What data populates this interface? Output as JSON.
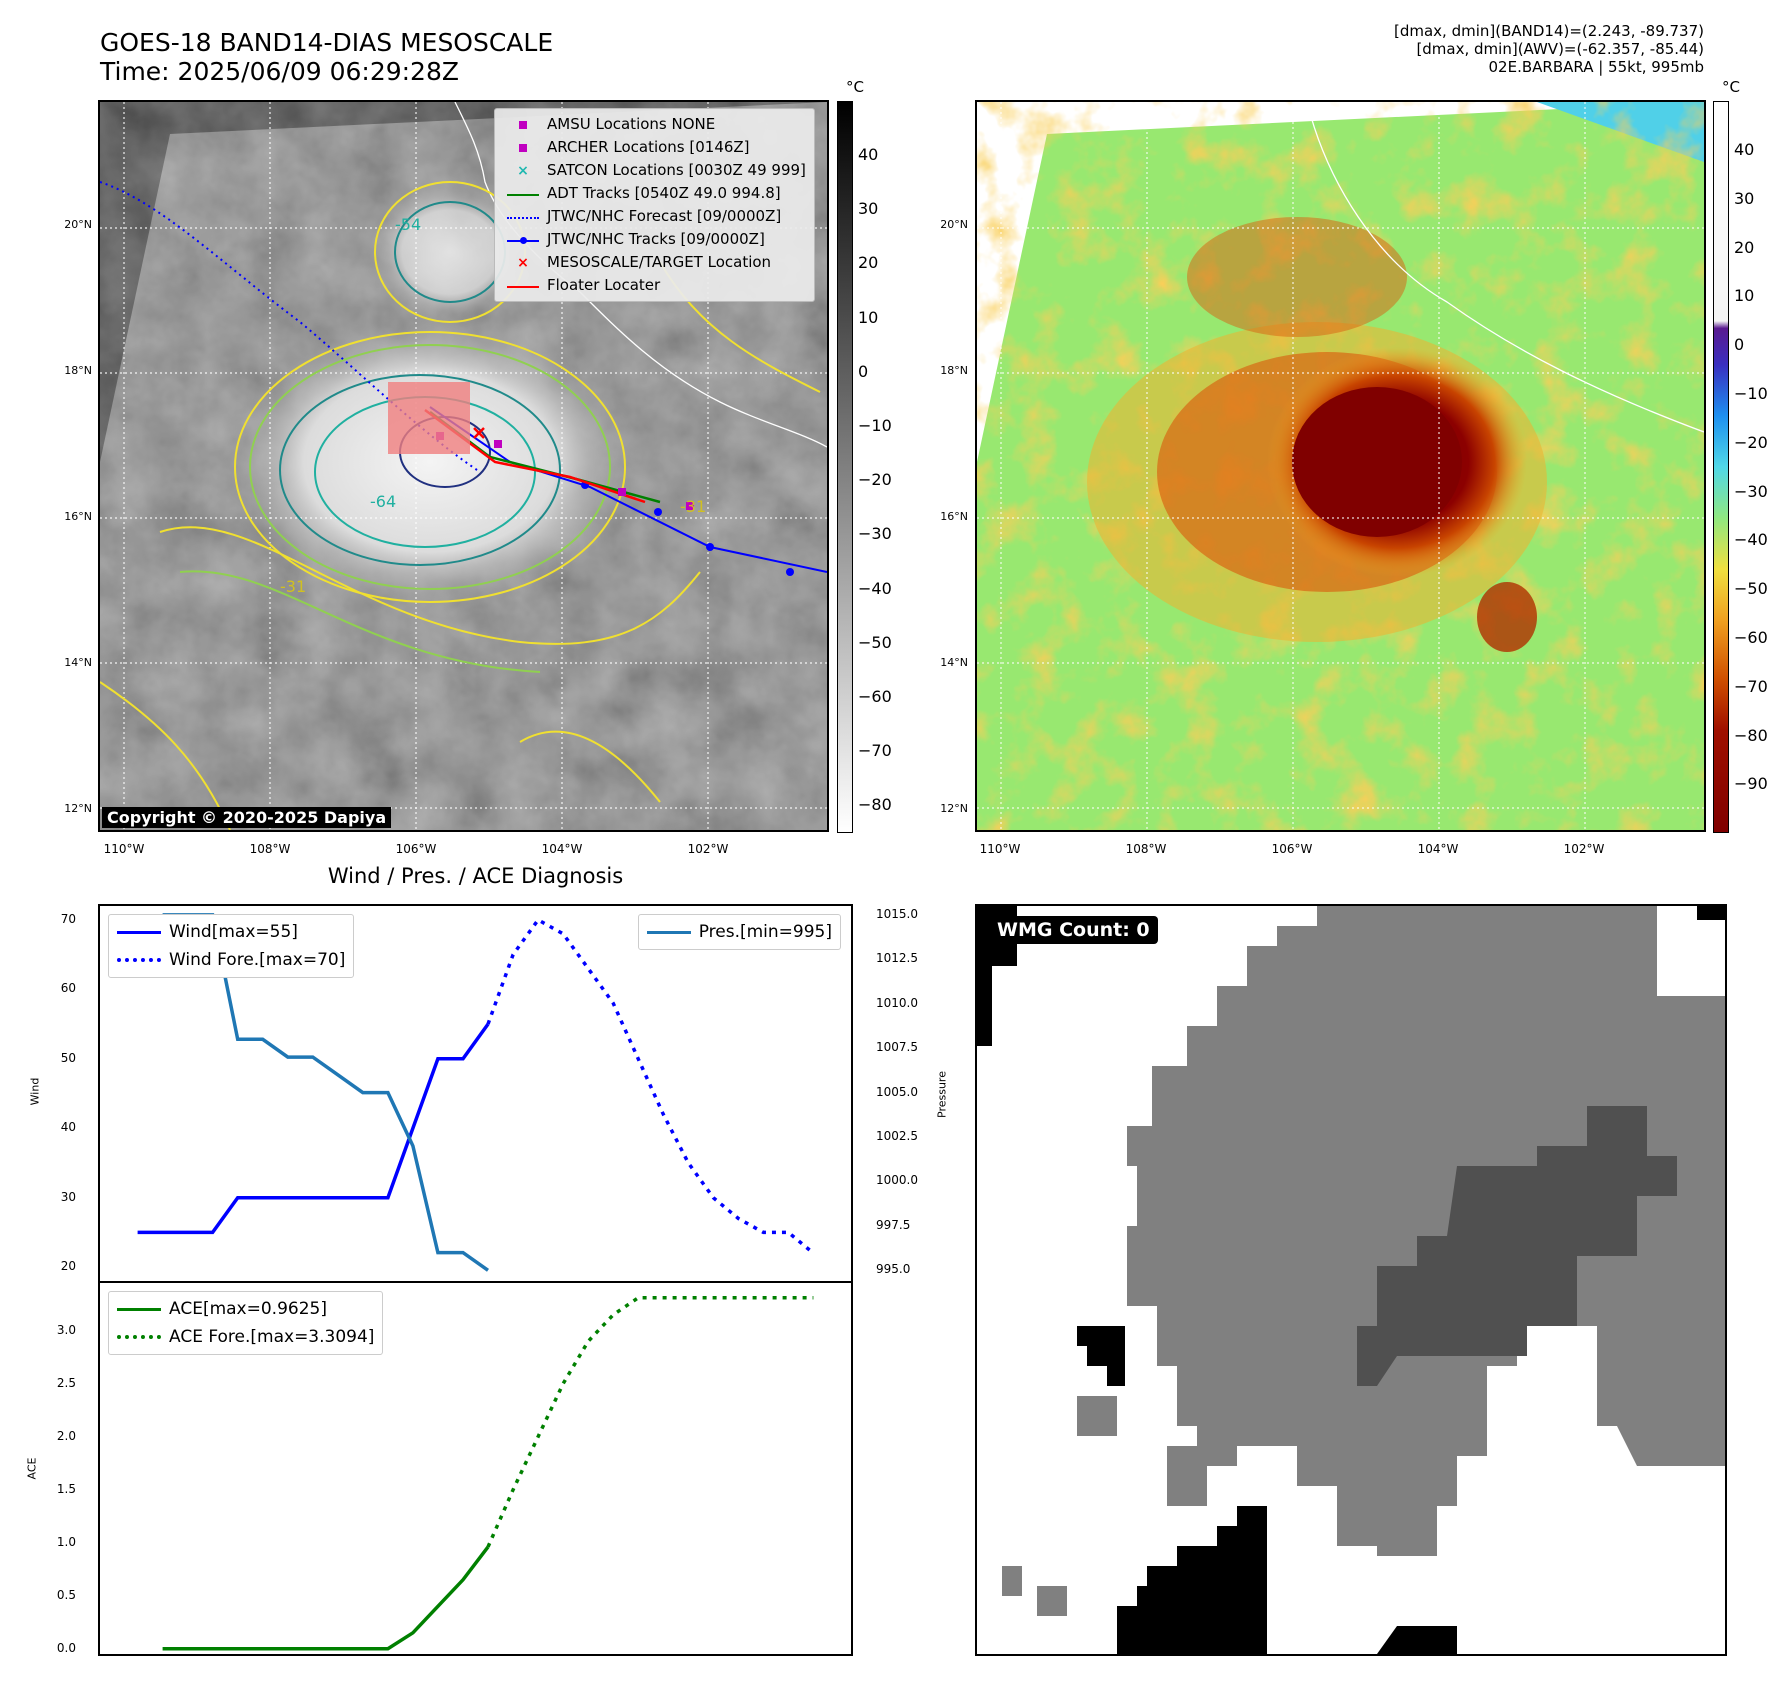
{
  "header": {
    "title_line1": "GOES-18 BAND14-DIAS MESOSCALE",
    "title_line2": "Time: 2025/06/09 06:29:28Z",
    "stats_line1": "[dmax, dmin](BAND14)=(2.243, -89.737)",
    "stats_line2": "[dmax, dmin](AWV)=(-62.357, -85.44)",
    "stats_line3": "02E.BARBARA | 55kt, 995mb"
  },
  "map": {
    "lat_labels": [
      "20°N",
      "18°N",
      "16°N",
      "14°N",
      "12°N"
    ],
    "lon_labels": [
      "110°W",
      "108°W",
      "106°W",
      "104°W",
      "102°W"
    ],
    "copyright": "Copyright © 2020-2025 Dapiya",
    "contour_labels": [
      "-54",
      "-64",
      "-31",
      "-31",
      "-31",
      "-31"
    ],
    "legend": [
      {
        "label": "AMSU Locations NONE",
        "color": "#c000c0",
        "symbol": "square"
      },
      {
        "label": "ARCHER Locations [0146Z]",
        "color": "#c000c0",
        "symbol": "square"
      },
      {
        "label": "SATCON Locations [0030Z 49 999]",
        "color": "#20b8b0",
        "symbol": "x"
      },
      {
        "label": "ADT Tracks [0540Z 49.0 994.8]",
        "color": "#008000",
        "symbol": "line"
      },
      {
        "label": "JTWC/NHC Forecast [09/0000Z]",
        "color": "#0000ff",
        "symbol": "dotted"
      },
      {
        "label": "JTWC/NHC Tracks [09/0000Z]",
        "color": "#0000ff",
        "symbol": "line-dot"
      },
      {
        "label": "MESOSCALE/TARGET Location",
        "color": "#ff0000",
        "symbol": "x"
      },
      {
        "label": "Floater Locater",
        "color": "#ff0000",
        "symbol": "line"
      }
    ]
  },
  "colorbar_gray": {
    "unit": "°C",
    "ticks": [
      "40",
      "30",
      "20",
      "10",
      "0",
      "−10",
      "−20",
      "−30",
      "−40",
      "−50",
      "−60",
      "−70",
      "−80"
    ]
  },
  "colorbar_color": {
    "unit": "°C",
    "ticks": [
      "40",
      "30",
      "20",
      "10",
      "0",
      "−10",
      "−20",
      "−30",
      "−40",
      "−50",
      "−60",
      "−70",
      "−80",
      "−90"
    ]
  },
  "diagnosis": {
    "title": "Wind / Pres. / ACE Diagnosis",
    "wind_axis_label": "Wind",
    "pressure_axis_label": "Pressure",
    "ace_axis_label": "ACE",
    "legend_wind": "Wind[max=55]",
    "legend_wind_fore": "Wind Fore.[max=70]",
    "legend_pres": "Pres.[min=995]",
    "legend_ace": "ACE[max=0.9625]",
    "legend_ace_fore": "ACE Fore.[max=3.3094]"
  },
  "wmg": {
    "label": "WMG Count: 0"
  },
  "chart_data": [
    {
      "type": "line",
      "title": "Wind / Pres. / ACE Diagnosis",
      "ylabel": "Wind",
      "ylim": [
        18,
        72
      ],
      "yticks": [
        20,
        30,
        40,
        50,
        60,
        70
      ],
      "x": [
        0,
        1,
        2,
        3,
        4,
        5,
        6,
        7,
        8,
        9,
        10,
        11,
        12,
        13,
        14,
        15,
        16,
        17,
        18,
        19,
        20,
        21,
        22,
        23,
        24,
        25,
        26,
        27
      ],
      "series": [
        {
          "name": "Wind[max=55]",
          "color": "#0000ff",
          "style": "solid",
          "x": [
            0,
            1,
            2,
            3,
            4,
            5,
            6,
            7,
            8,
            9,
            10,
            11,
            12,
            13,
            14
          ],
          "values": [
            25,
            25,
            25,
            25,
            30,
            30,
            30,
            30,
            30,
            30,
            30,
            40,
            50,
            50,
            55
          ]
        },
        {
          "name": "Wind Fore.[max=70]",
          "color": "#0000ff",
          "style": "dotted",
          "x": [
            14,
            15,
            16,
            17,
            18,
            19,
            20,
            21,
            22,
            23,
            24,
            25,
            26,
            27
          ],
          "values": [
            55,
            65,
            70,
            68,
            63,
            58,
            50,
            42,
            35,
            30,
            27,
            25,
            25,
            22
          ]
        }
      ]
    },
    {
      "type": "line",
      "ylabel": "Pressure",
      "ylim": [
        994.4,
        1015.5
      ],
      "yticks": [
        995.0,
        997.5,
        1000.0,
        1002.5,
        1005.0,
        1007.5,
        1010.0,
        1012.5,
        1015.0
      ],
      "series": [
        {
          "name": "Pres.[min=995]",
          "color": "#1f77b4",
          "style": "solid",
          "x": [
            1,
            2,
            3,
            4,
            5,
            6,
            7,
            8,
            9,
            10,
            11,
            12,
            13,
            14
          ],
          "values": [
            1015,
            1015,
            1015,
            1008,
            1008,
            1007,
            1007,
            1006,
            1005,
            1005,
            1002,
            996,
            996,
            995
          ]
        }
      ]
    },
    {
      "type": "line",
      "ylabel": "ACE",
      "ylim": [
        -0.05,
        3.45
      ],
      "yticks": [
        0.0,
        0.5,
        1.0,
        1.5,
        2.0,
        2.5,
        3.0
      ],
      "series": [
        {
          "name": "ACE[max=0.9625]",
          "color": "#008000",
          "style": "solid",
          "x": [
            1,
            2,
            3,
            4,
            5,
            6,
            7,
            8,
            9,
            10,
            11,
            12,
            13,
            14
          ],
          "values": [
            0,
            0,
            0,
            0,
            0,
            0,
            0,
            0,
            0,
            0,
            0.15,
            0.4,
            0.65,
            0.96
          ]
        },
        {
          "name": "ACE Fore.[max=3.3094]",
          "color": "#008000",
          "style": "dotted",
          "x": [
            14,
            15,
            16,
            17,
            18,
            19,
            20,
            21,
            22,
            23,
            24,
            25,
            26,
            27
          ],
          "values": [
            0.96,
            1.5,
            2.0,
            2.5,
            2.9,
            3.15,
            3.31,
            3.31,
            3.31,
            3.31,
            3.31,
            3.31,
            3.31,
            3.31
          ]
        }
      ]
    }
  ]
}
